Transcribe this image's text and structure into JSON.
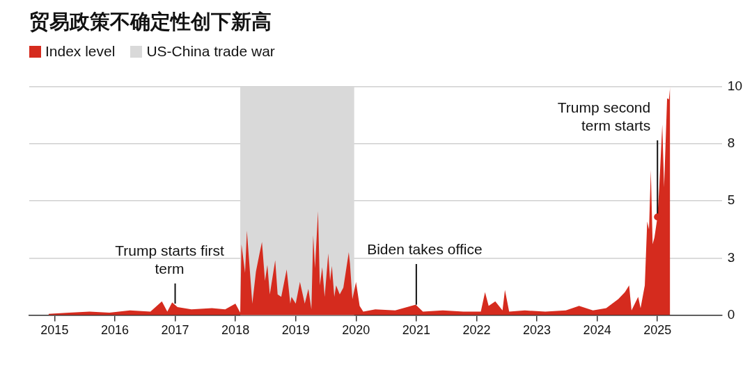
{
  "chart_data": {
    "type": "area",
    "title": "贸易政策不确定性创下新高",
    "x": [
      2014.9,
      2015.24,
      2015.58,
      2015.91,
      2016.25,
      2016.59,
      2016.78,
      2016.87,
      2016.95,
      2017.04,
      2017.27,
      2017.61,
      2017.83,
      2018.0,
      2018.08,
      2018.1,
      2018.16,
      2018.19,
      2018.28,
      2018.34,
      2018.4,
      2018.44,
      2018.49,
      2018.53,
      2018.57,
      2018.66,
      2018.7,
      2018.76,
      2018.85,
      2018.91,
      2018.93,
      2019.0,
      2019.07,
      2019.15,
      2019.21,
      2019.26,
      2019.29,
      2019.32,
      2019.37,
      2019.4,
      2019.44,
      2019.48,
      2019.54,
      2019.57,
      2019.6,
      2019.64,
      2019.67,
      2019.73,
      2019.79,
      2019.88,
      2019.9,
      2019.94,
      2020.0,
      2020.06,
      2020.12,
      2020.32,
      2020.65,
      2020.99,
      2021.11,
      2021.44,
      2021.78,
      2022.07,
      2022.14,
      2022.2,
      2022.31,
      2022.43,
      2022.47,
      2022.54,
      2022.8,
      2023.14,
      2023.48,
      2023.7,
      2023.93,
      2024.15,
      2024.35,
      2024.46,
      2024.53,
      2024.57,
      2024.68,
      2024.72,
      2024.79,
      2024.83,
      2024.86,
      2024.89,
      2024.92,
      2024.95,
      2025.0,
      2025.03,
      2025.08,
      2025.11,
      2025.16,
      2025.19,
      2025.21
    ],
    "series": [
      {
        "name": "Index level",
        "color": "#d52b1e",
        "values": [
          0.05,
          0.1,
          0.15,
          0.1,
          0.2,
          0.15,
          0.6,
          0.15,
          0.55,
          0.35,
          0.25,
          0.3,
          0.25,
          0.5,
          0.1,
          3.1,
          1.85,
          3.7,
          0.5,
          1.9,
          2.7,
          3.2,
          1.5,
          2.2,
          0.9,
          2.4,
          0.9,
          0.8,
          2.0,
          0.5,
          0.8,
          0.5,
          1.45,
          0.5,
          1.15,
          0.25,
          3.5,
          2.05,
          4.55,
          1.3,
          2.1,
          0.8,
          2.7,
          1.5,
          2.15,
          0.8,
          1.3,
          0.9,
          1.2,
          2.75,
          2.25,
          0.7,
          1.45,
          0.4,
          0.15,
          0.25,
          0.2,
          0.45,
          0.15,
          0.2,
          0.15,
          0.15,
          1.0,
          0.4,
          0.6,
          0.2,
          1.1,
          0.15,
          0.2,
          0.15,
          0.2,
          0.4,
          0.2,
          0.3,
          0.7,
          1.0,
          1.3,
          0.2,
          0.8,
          0.3,
          1.3,
          4.1,
          3.75,
          6.35,
          3.1,
          3.4,
          4.3,
          5.6,
          8.35,
          5.6,
          9.5,
          9.45,
          10
        ]
      }
    ],
    "xlim": [
      2014.58,
      2026.07
    ],
    "xticks": [
      2015,
      2016,
      2017,
      2018,
      2019,
      2020,
      2021,
      2022,
      2023,
      2024,
      2025
    ],
    "ylim": [
      0,
      10
    ],
    "yticks": [
      0,
      {
        "value": 2.5,
        "label": "3"
      },
      5,
      {
        "value": 7.5,
        "label": "8"
      },
      10
    ],
    "grid": "y",
    "legend": "top left",
    "bands": [
      {
        "axis": "x",
        "from": 2018.08,
        "to": 2019.97,
        "label": "US-China trade war",
        "color": "#d9d9d9"
      }
    ],
    "annotations": [
      {
        "text": "Trump starts first term",
        "x": 2017.0,
        "y": 0.5
      },
      {
        "text": "Biden takes office",
        "x": 2021.0,
        "y": 0.45
      },
      {
        "text": "Trump second term starts",
        "x": 2025.0,
        "y": 4.3
      }
    ]
  }
}
